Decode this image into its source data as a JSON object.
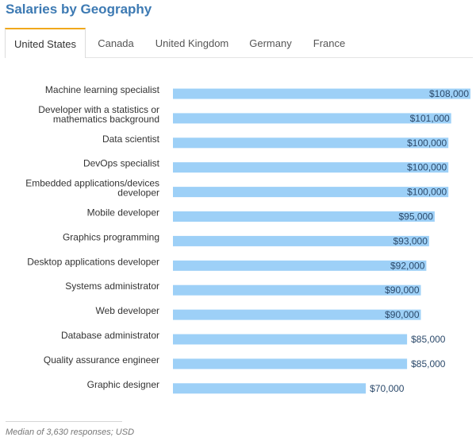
{
  "title": "Salaries by Geography",
  "tabs": [
    {
      "label": "United States",
      "active": true
    },
    {
      "label": "Canada",
      "active": false
    },
    {
      "label": "United Kingdom",
      "active": false
    },
    {
      "label": "Germany",
      "active": false
    },
    {
      "label": "France",
      "active": false
    }
  ],
  "chart_data": {
    "type": "bar",
    "orientation": "horizontal",
    "categories": [
      "Machine learning specialist",
      "Developer with a statistics or mathematics background",
      "Data scientist",
      "DevOps specialist",
      "Embedded applications/devices developer",
      "Mobile developer",
      "Graphics programming",
      "Desktop applications developer",
      "Systems administrator",
      "Web developer",
      "Database administrator",
      "Quality assurance engineer",
      "Graphic designer"
    ],
    "category_lines": [
      [
        "Machine learning specialist"
      ],
      [
        "Developer with a statistics or",
        "mathematics background"
      ],
      [
        "Data scientist"
      ],
      [
        "DevOps specialist"
      ],
      [
        "Embedded applications/devices",
        "developer"
      ],
      [
        "Mobile developer"
      ],
      [
        "Graphics programming"
      ],
      [
        "Desktop applications developer"
      ],
      [
        "Systems administrator"
      ],
      [
        "Web developer"
      ],
      [
        "Database administrator"
      ],
      [
        "Quality assurance engineer"
      ],
      [
        "Graphic designer"
      ]
    ],
    "values": [
      108000,
      101000,
      100000,
      100000,
      100000,
      95000,
      93000,
      92000,
      90000,
      90000,
      85000,
      85000,
      70000
    ],
    "value_labels": [
      "$108,000",
      "$101,000",
      "$100,000",
      "$100,000",
      "$100,000",
      "$95,000",
      "$93,000",
      "$92,000",
      "$90,000",
      "$90,000",
      "$85,000",
      "$85,000",
      "$70,000"
    ],
    "xlim": [
      0,
      108000
    ],
    "bar_color": "#9dd0f7",
    "label_color": "#2c4a6b"
  },
  "footnote": "Median of 3,630 responses; USD"
}
